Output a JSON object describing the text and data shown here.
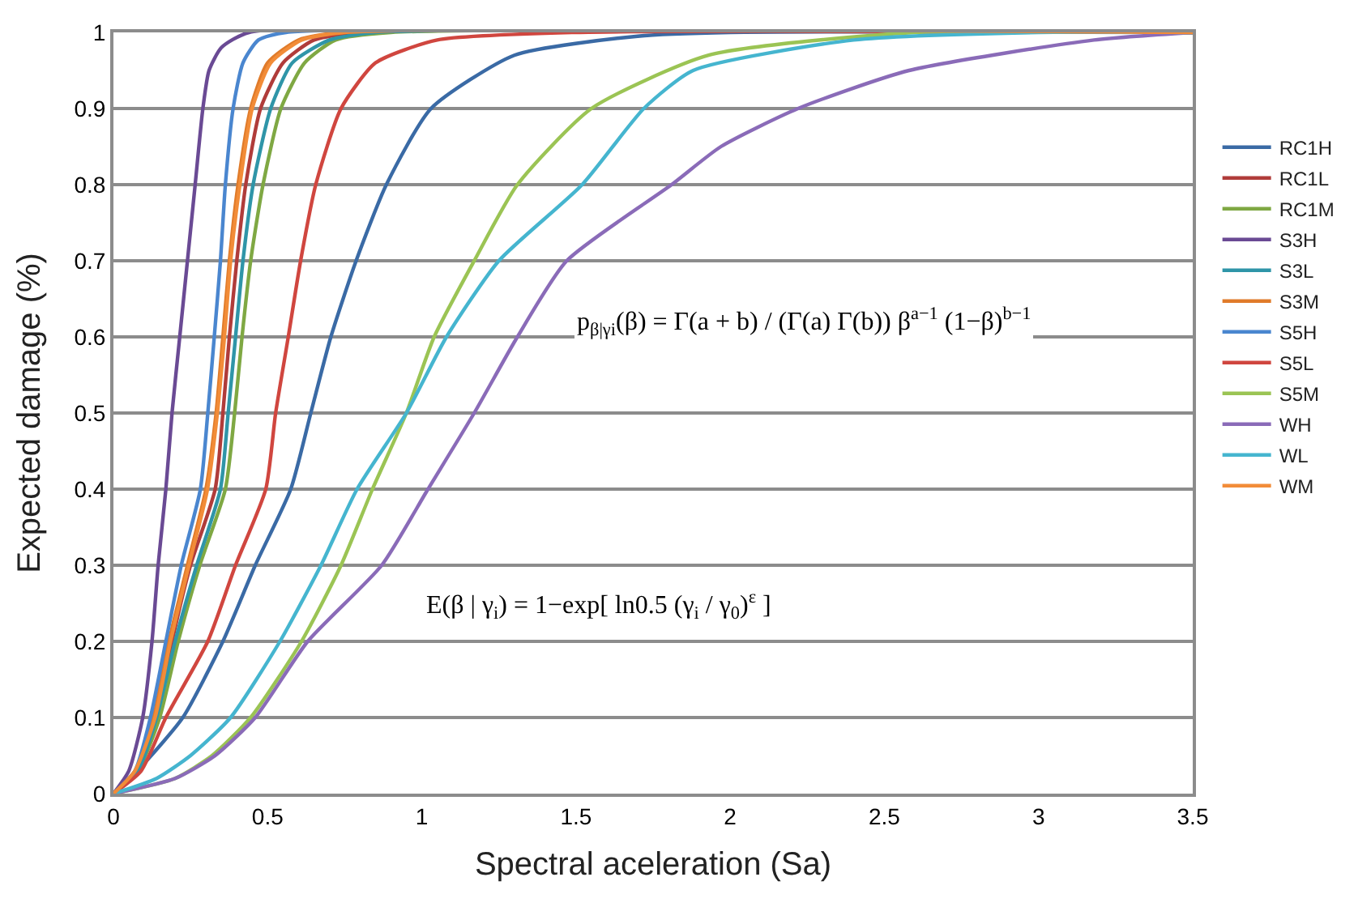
{
  "chart_data": {
    "type": "line",
    "xlabel": "Spectral aceleration (Sa)",
    "ylabel": "Expected damage (%)",
    "xlim": [
      0,
      3.5
    ],
    "xticks": [
      0,
      0.5,
      1,
      1.5,
      2,
      2.5,
      3,
      3.5
    ],
    "ylim": [
      0,
      1
    ],
    "yticks": [
      0,
      0.1,
      0.2,
      0.3,
      0.4,
      0.5,
      0.6,
      0.7,
      0.8,
      0.9,
      1
    ],
    "grid": "y",
    "legend": "right",
    "line_style": "solid",
    "annotations": [
      "p$_{β|γi}$(β) = Γ(a + b) / (Γ(a) Γ(b)) β$^{a−1}$ (1−β)$^{b−1}$",
      "E(β | γ$_{i}$) = 1−exp[ ln0.5 (γ$_{i}$ / γ$_{0}$)$^{ε}$ ]"
    ],
    "series": [
      {
        "name": "RC1H",
        "color": "#3a6aa5",
        "x": [
          0,
          0.1,
          0.225,
          0.355,
          0.46,
          0.575,
          0.64,
          0.705,
          0.787,
          0.885,
          1.03,
          1.3,
          1.7,
          2.0,
          3.5
        ],
        "values": [
          0,
          0.04,
          0.1,
          0.2,
          0.3,
          0.4,
          0.5,
          0.6,
          0.7,
          0.8,
          0.9,
          0.97,
          0.995,
          1,
          1
        ]
      },
      {
        "name": "RC1L",
        "color": "#b03c3a",
        "x": [
          0,
          0.08,
          0.14,
          0.19,
          0.25,
          0.33,
          0.355,
          0.376,
          0.4,
          0.429,
          0.477,
          0.55,
          0.65,
          0.8,
          3.5
        ],
        "values": [
          0,
          0.03,
          0.1,
          0.2,
          0.3,
          0.4,
          0.5,
          0.6,
          0.7,
          0.8,
          0.9,
          0.96,
          0.99,
          1,
          1
        ]
      },
      {
        "name": "RC1M",
        "color": "#7fa843",
        "x": [
          0,
          0.08,
          0.15,
          0.21,
          0.28,
          0.363,
          0.393,
          0.417,
          0.445,
          0.485,
          0.543,
          0.62,
          0.72,
          0.9,
          3.5
        ],
        "values": [
          0,
          0.03,
          0.1,
          0.2,
          0.3,
          0.4,
          0.5,
          0.6,
          0.7,
          0.8,
          0.9,
          0.96,
          0.99,
          1,
          1
        ]
      },
      {
        "name": "S3H",
        "color": "#6a4a94",
        "x": [
          0,
          0.05,
          0.095,
          0.125,
          0.145,
          0.17,
          0.19,
          0.215,
          0.24,
          0.265,
          0.29,
          0.31,
          0.35,
          0.44,
          3.5
        ],
        "values": [
          0,
          0.03,
          0.1,
          0.2,
          0.3,
          0.4,
          0.5,
          0.6,
          0.7,
          0.8,
          0.9,
          0.95,
          0.98,
          1,
          1
        ]
      },
      {
        "name": "S3L",
        "color": "#2f95a8",
        "x": [
          0,
          0.08,
          0.14,
          0.2,
          0.27,
          0.347,
          0.372,
          0.396,
          0.42,
          0.453,
          0.51,
          0.58,
          0.7,
          0.85,
          3.5
        ],
        "values": [
          0,
          0.03,
          0.1,
          0.2,
          0.3,
          0.4,
          0.5,
          0.6,
          0.7,
          0.8,
          0.9,
          0.96,
          0.99,
          1,
          1
        ]
      },
      {
        "name": "S3M",
        "color": "#e07b2a",
        "x": [
          0,
          0.07,
          0.13,
          0.18,
          0.24,
          0.3,
          0.333,
          0.355,
          0.376,
          0.404,
          0.445,
          0.5,
          0.6,
          0.74,
          3.5
        ],
        "values": [
          0,
          0.03,
          0.1,
          0.2,
          0.3,
          0.4,
          0.5,
          0.6,
          0.7,
          0.8,
          0.9,
          0.96,
          0.99,
          1,
          1
        ]
      },
      {
        "name": "S5H",
        "color": "#4a86cf",
        "x": [
          0,
          0.07,
          0.12,
          0.17,
          0.22,
          0.282,
          0.306,
          0.327,
          0.347,
          0.363,
          0.388,
          0.42,
          0.47,
          0.56,
          3.5
        ],
        "values": [
          0,
          0.03,
          0.1,
          0.2,
          0.3,
          0.4,
          0.5,
          0.6,
          0.7,
          0.8,
          0.9,
          0.96,
          0.99,
          1,
          1
        ]
      },
      {
        "name": "S5L",
        "color": "#d0463f",
        "x": [
          0,
          0.09,
          0.17,
          0.306,
          0.396,
          0.494,
          0.526,
          0.567,
          0.607,
          0.656,
          0.738,
          0.85,
          1.05,
          1.5,
          3.5
        ],
        "values": [
          0,
          0.03,
          0.1,
          0.2,
          0.3,
          0.4,
          0.5,
          0.6,
          0.7,
          0.8,
          0.9,
          0.96,
          0.99,
          1,
          1
        ]
      },
      {
        "name": "S5M",
        "color": "#9bc454",
        "x": [
          0,
          0.2,
          0.32,
          0.445,
          0.61,
          0.738,
          0.84,
          0.95,
          1.04,
          1.17,
          1.31,
          1.55,
          1.93,
          2.6,
          3.5
        ],
        "values": [
          0,
          0.02,
          0.05,
          0.1,
          0.2,
          0.3,
          0.4,
          0.5,
          0.6,
          0.7,
          0.8,
          0.9,
          0.97,
          1,
          1
        ]
      },
      {
        "name": "WH",
        "color": "#8a6bb8",
        "x": [
          0,
          0.2,
          0.33,
          0.46,
          0.63,
          0.87,
          1.02,
          1.17,
          1.31,
          1.47,
          1.81,
          1.97,
          2.22,
          2.58,
          3.18,
          3.5
        ],
        "values": [
          0,
          0.02,
          0.05,
          0.1,
          0.2,
          0.3,
          0.4,
          0.5,
          0.6,
          0.7,
          0.8,
          0.85,
          0.9,
          0.95,
          0.99,
          1
        ]
      },
      {
        "name": "WL",
        "color": "#45b5cf",
        "x": [
          0,
          0.14,
          0.25,
          0.38,
          0.54,
          0.673,
          0.79,
          0.95,
          1.08,
          1.25,
          1.52,
          1.72,
          1.88,
          2.4,
          3.0,
          3.5
        ],
        "values": [
          0,
          0.02,
          0.05,
          0.1,
          0.2,
          0.3,
          0.4,
          0.5,
          0.6,
          0.7,
          0.8,
          0.9,
          0.95,
          0.99,
          1,
          1
        ]
      },
      {
        "name": "WM",
        "color": "#f28c38",
        "x": [
          0,
          0.07,
          0.135,
          0.185,
          0.245,
          0.305,
          0.337,
          0.36,
          0.38,
          0.41,
          0.45,
          0.51,
          0.61,
          0.75,
          3.5
        ],
        "values": [
          0,
          0.03,
          0.1,
          0.2,
          0.3,
          0.4,
          0.5,
          0.6,
          0.7,
          0.8,
          0.9,
          0.96,
          0.99,
          1,
          1
        ]
      }
    ]
  }
}
